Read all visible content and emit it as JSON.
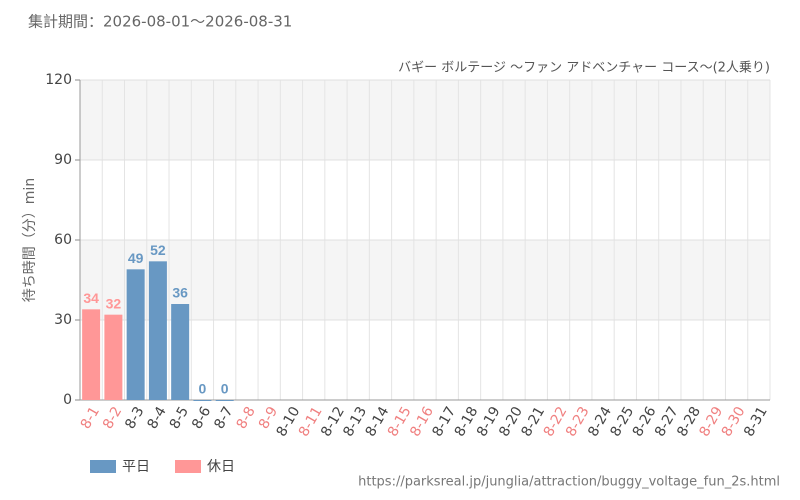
{
  "chart_data": {
    "type": "bar",
    "title": "集計期間：2026-08-01～2026-08-31",
    "subtitle": "バギー ボルテージ 〜ファン アドベンチャー コース〜(2人乗り)",
    "y_label": "待ち時間（分）min",
    "source": "https://parksreal.jp/junglia/attraction/buggy_voltage_fun_2s.html",
    "categories": [
      "8-1",
      "8-2",
      "8-3",
      "8-4",
      "8-5",
      "8-6",
      "8-7",
      "8-8",
      "8-9",
      "8-10",
      "8-11",
      "8-12",
      "8-13",
      "8-14",
      "8-15",
      "8-16",
      "8-17",
      "8-18",
      "8-19",
      "8-20",
      "8-21",
      "8-22",
      "8-23",
      "8-24",
      "8-25",
      "8-26",
      "8-27",
      "8-28",
      "8-29",
      "8-30",
      "8-31"
    ],
    "category_label_colors": [
      "#f08080",
      "#f08080",
      "#444",
      "#444",
      "#444",
      "#444",
      "#444",
      "#f08080",
      "#f08080",
      "#444",
      "#f08080",
      "#444",
      "#444",
      "#444",
      "#f08080",
      "#f08080",
      "#444",
      "#444",
      "#444",
      "#444",
      "#444",
      "#f08080",
      "#f08080",
      "#444",
      "#444",
      "#444",
      "#444",
      "#444",
      "#f08080",
      "#f08080",
      "#444"
    ],
    "series": [
      {
        "name": "平日",
        "color": "#6898c3",
        "values": [
          null,
          null,
          49,
          52,
          36,
          0,
          0,
          null,
          null,
          null,
          null,
          null,
          null,
          null,
          null,
          null,
          null,
          null,
          null,
          null,
          null,
          null,
          null,
          null,
          null,
          null,
          null,
          null,
          null,
          null,
          null
        ]
      },
      {
        "name": "休日",
        "color": "#ff9797",
        "values": [
          34,
          32,
          null,
          null,
          null,
          null,
          null,
          null,
          null,
          null,
          null,
          null,
          null,
          null,
          null,
          null,
          null,
          null,
          null,
          null,
          null,
          null,
          null,
          null,
          null,
          null,
          null,
          null,
          null,
          null,
          null
        ]
      }
    ],
    "ylim": [
      0,
      120
    ],
    "yticks": [
      0,
      30,
      60,
      90,
      120
    ],
    "grid": true
  }
}
